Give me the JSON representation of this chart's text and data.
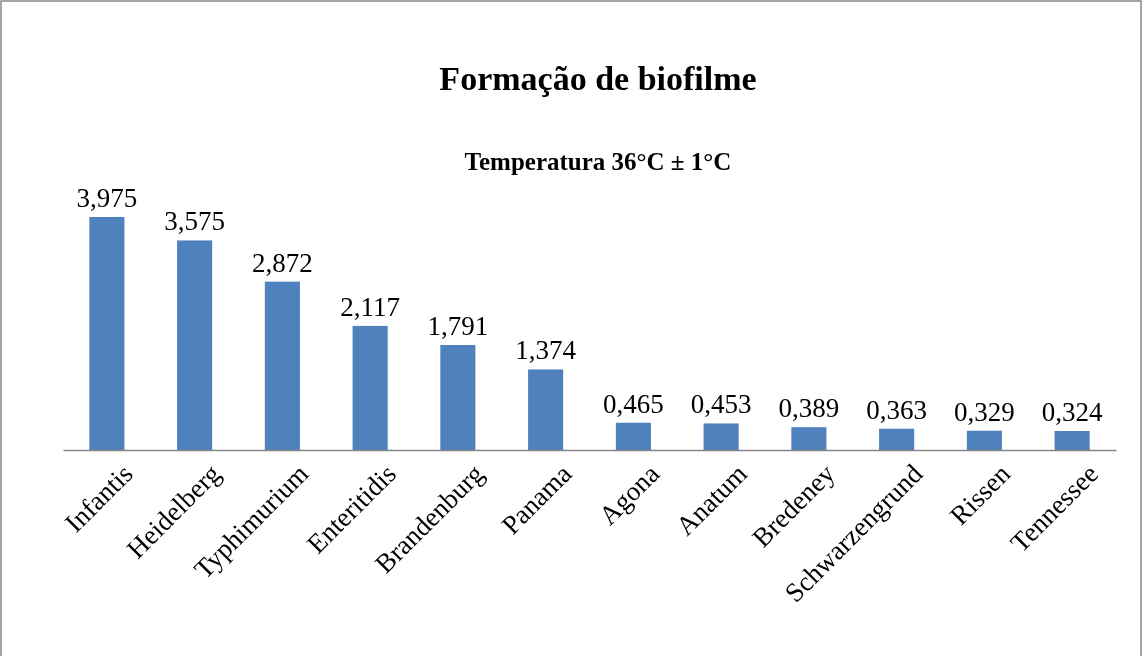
{
  "chart_data": {
    "type": "bar",
    "title": "Formação de biofilme",
    "subtitle": "Temperatura 36°C ± 1°C",
    "categories": [
      "Infantis",
      "Heidelberg",
      "Typhimurium",
      "Enteritidis",
      "Brandenburg",
      "Panama",
      "Agona",
      "Anatum",
      "Bredeney",
      "Schwarzengrund",
      "Rissen",
      "Tennessee"
    ],
    "values": [
      3.975,
      3.575,
      2.872,
      2.117,
      1.791,
      1.374,
      0.465,
      0.453,
      0.389,
      0.363,
      0.329,
      0.324
    ],
    "value_labels": [
      "3,975",
      "3,575",
      "2,872",
      "2,117",
      "1,791",
      "1,374",
      "0,465",
      "0,453",
      "0,389",
      "0,363",
      "0,329",
      "0,324"
    ],
    "color": "#4f81bd"
  }
}
